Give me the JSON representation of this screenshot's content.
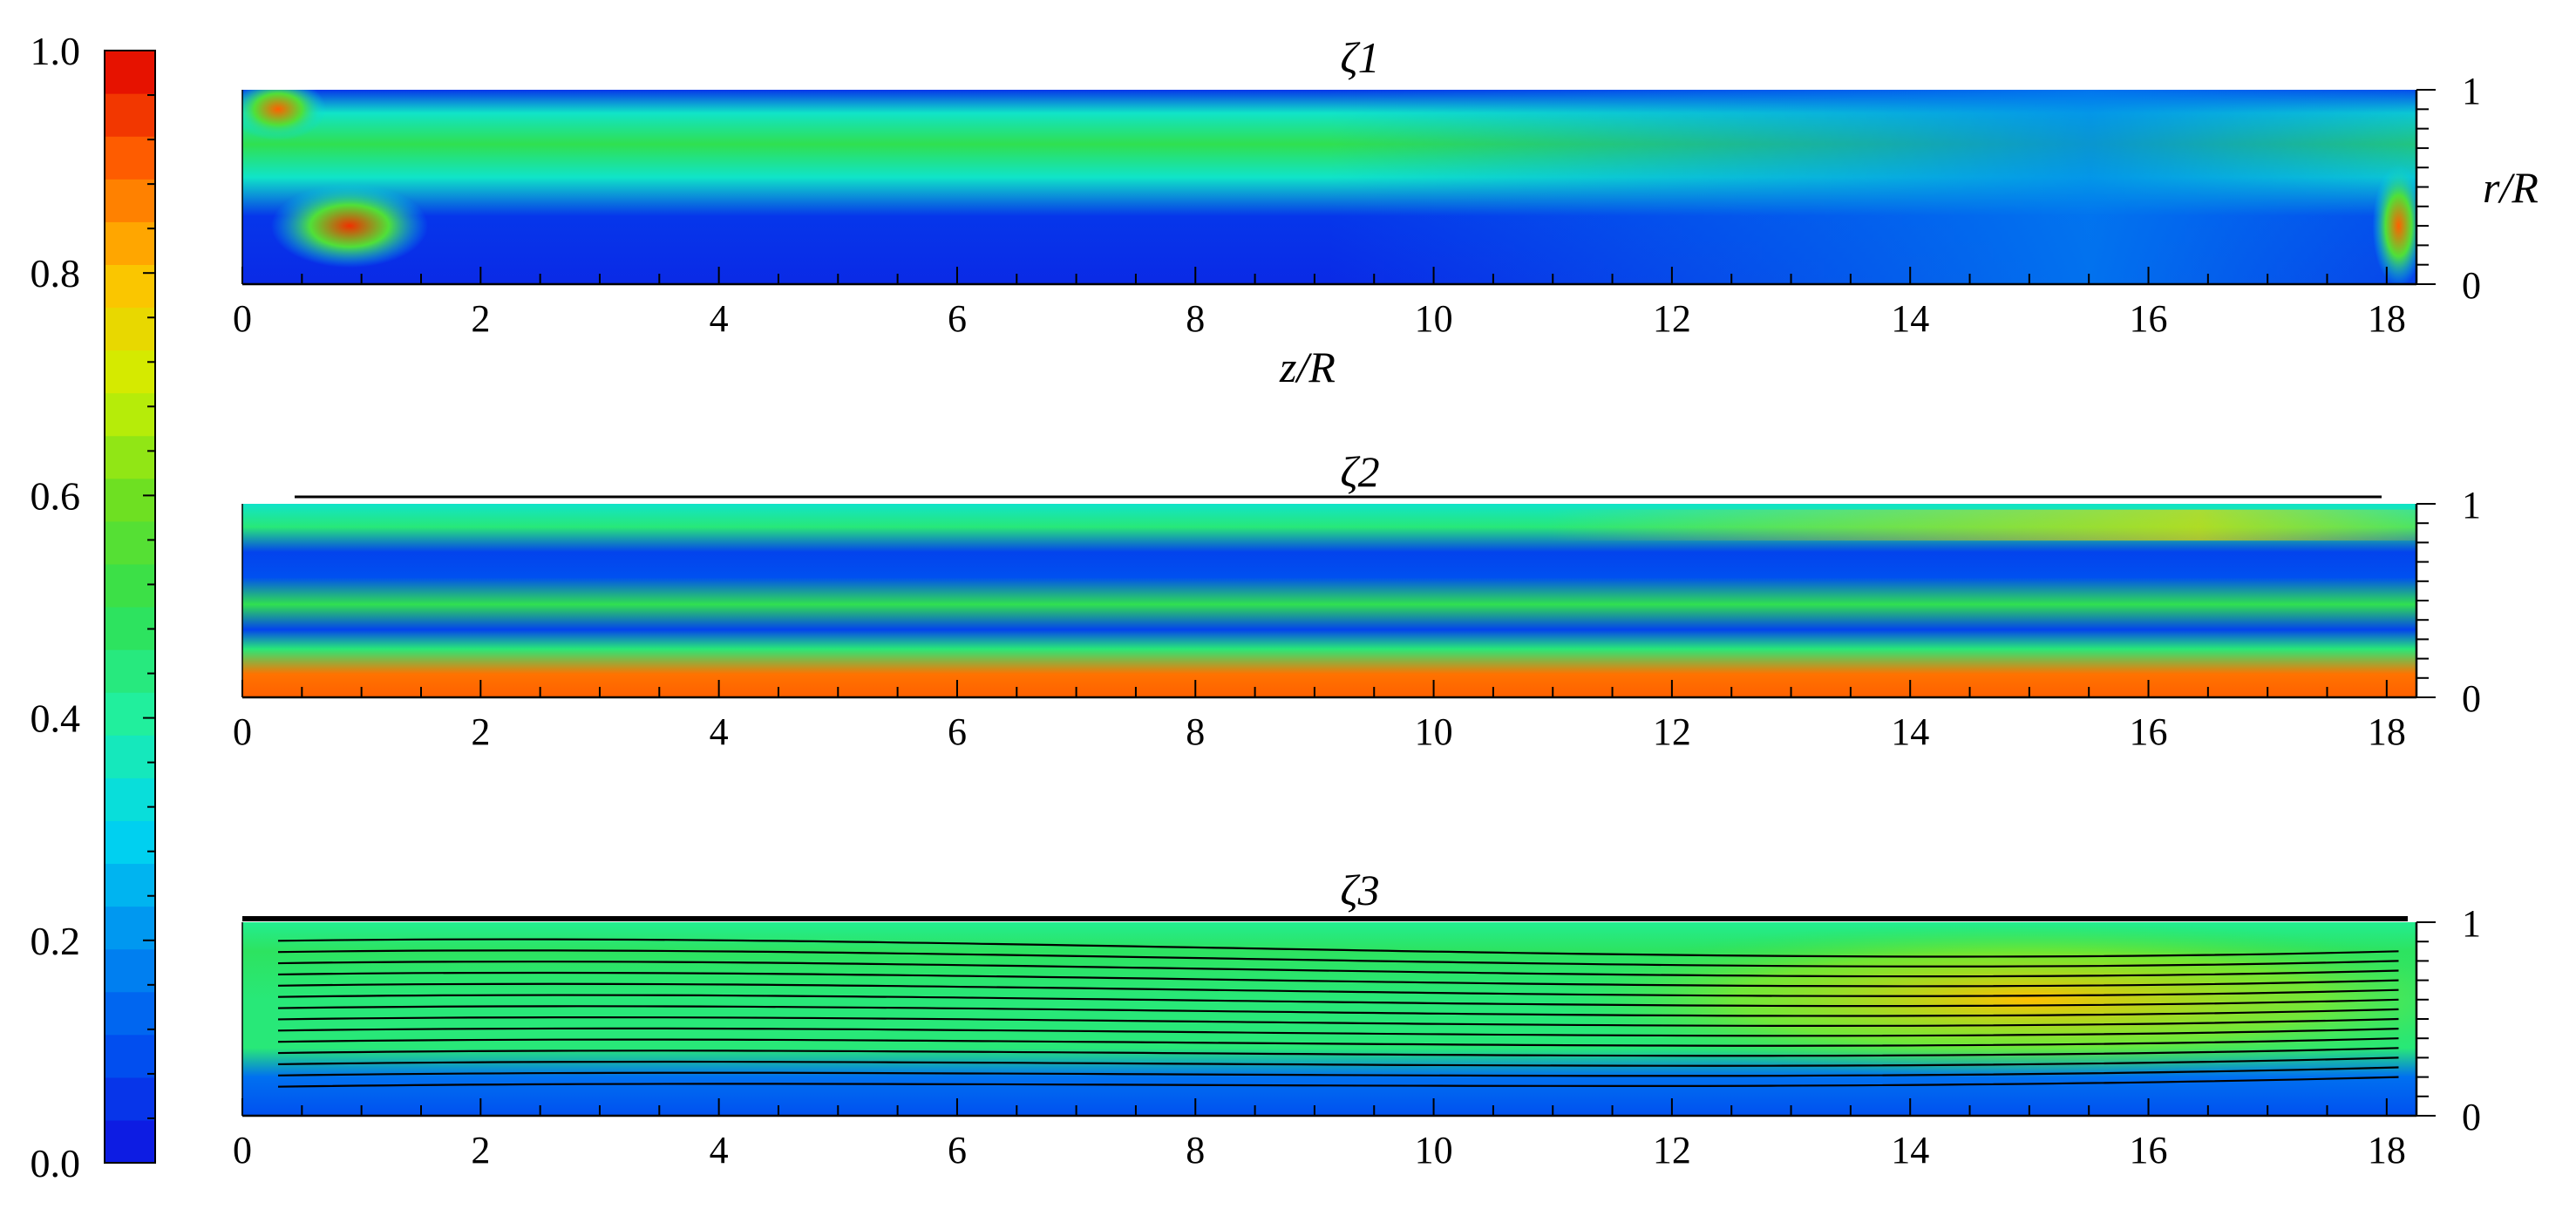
{
  "chart_data": [
    {
      "type": "heatmap",
      "title": "ζ1",
      "xlabel": "z/R",
      "ylabel": "r/R",
      "xlim": [
        0,
        18.25
      ],
      "ylim": [
        0,
        1
      ],
      "x_ticks": [
        "0",
        "2",
        "4",
        "6",
        "8",
        "10",
        "12",
        "14",
        "16",
        "18"
      ],
      "y_ticks": [
        "0",
        "1"
      ],
      "features": {
        "core_band": {
          "r_center": 0.72,
          "value_left": 0.5,
          "value_right": 0.3
        },
        "left_hotspot": {
          "z": 0.9,
          "r": 0.3,
          "value": 0.95
        },
        "corner_hotspots": [
          {
            "z": 0.3,
            "r": 0.9,
            "value": 0.9
          },
          {
            "z": 18.1,
            "r": 0.3,
            "value": 0.9
          }
        ],
        "background": 0.05
      }
    },
    {
      "type": "heatmap",
      "title": "ζ2",
      "xlabel": "",
      "ylabel": "",
      "xlim": [
        0,
        18.25
      ],
      "ylim": [
        0,
        1
      ],
      "x_ticks": [
        "0",
        "2",
        "4",
        "6",
        "8",
        "10",
        "12",
        "14",
        "16",
        "18"
      ],
      "y_ticks": [
        "0",
        "1"
      ],
      "features": {
        "bottom_band": {
          "r_center": 0.1,
          "value": 0.9
        },
        "top_band": {
          "r_center": 0.88,
          "value_left": 0.45,
          "value_right": 0.75
        },
        "middle_band": {
          "r_center": 0.48,
          "value": 0.5
        },
        "background": 0.1
      }
    },
    {
      "type": "heatmap",
      "title": "ζ3",
      "xlabel": "",
      "ylabel": "",
      "xlim": [
        0,
        18.25
      ],
      "ylim": [
        0,
        1
      ],
      "x_ticks": [
        "0",
        "2",
        "4",
        "6",
        "8",
        "10",
        "12",
        "14",
        "16",
        "18"
      ],
      "y_ticks": [
        "0",
        "1"
      ],
      "streamlines": true,
      "features": {
        "field": {
          "value_left": 0.45,
          "value_right": 0.65
        },
        "hot_region": {
          "z_center": 15,
          "r_center": 0.6,
          "value": 0.8
        },
        "low_band": {
          "r_center": 0.2,
          "value": 0.15
        }
      }
    }
  ],
  "colorbar": {
    "range": [
      0,
      1
    ],
    "tick_labels": [
      "0.0",
      "0.2",
      "0.4",
      "0.6",
      "0.8",
      "1.0"
    ],
    "levels": 26
  },
  "colormap": [
    "#1010e0",
    "#0050f0",
    "#0090f0",
    "#00d8f0",
    "#20f0a0",
    "#30e050",
    "#70e020",
    "#d0f000",
    "#ffc000",
    "#ff6000",
    "#e00000"
  ]
}
